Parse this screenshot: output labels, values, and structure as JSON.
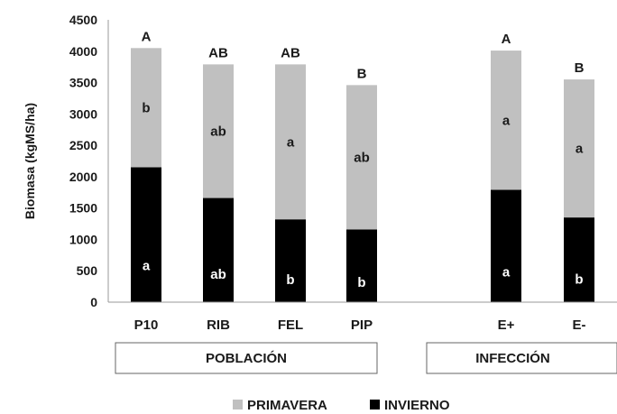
{
  "chart_data": {
    "type": "bar",
    "stacked": true,
    "title": "",
    "xlabel": "",
    "ylabel": "Biomasa (kgMS/ha)",
    "ylim": [
      0,
      4500
    ],
    "yticks": [
      0,
      500,
      1000,
      1500,
      2000,
      2500,
      3000,
      3500,
      4000,
      4500
    ],
    "grid": false,
    "legend_position": "bottom",
    "categories": [
      "P10",
      "RIB",
      "FEL",
      "PIP",
      "E+",
      "E-"
    ],
    "series": [
      {
        "name": "INVIERNO",
        "color": "#000000",
        "values": [
          2150,
          1660,
          1320,
          1160,
          1790,
          1350
        ],
        "labels": [
          "a",
          "ab",
          "b",
          "b",
          "a",
          "b"
        ]
      },
      {
        "name": "PRIMAVERA",
        "color": "#c0c0c0",
        "values": [
          1900,
          2130,
          2470,
          2300,
          2220,
          2200
        ],
        "labels": [
          "b",
          "ab",
          "a",
          "ab",
          "a",
          "a"
        ]
      }
    ],
    "total_labels": [
      "A",
      "AB",
      "AB",
      "B",
      "A",
      "B"
    ],
    "groups": [
      {
        "label": "POBLACIÓN",
        "categories": [
          "P10",
          "RIB",
          "FEL",
          "PIP"
        ]
      },
      {
        "label": "INFECCIÓN",
        "categories": [
          "E+",
          "E-"
        ]
      }
    ]
  }
}
